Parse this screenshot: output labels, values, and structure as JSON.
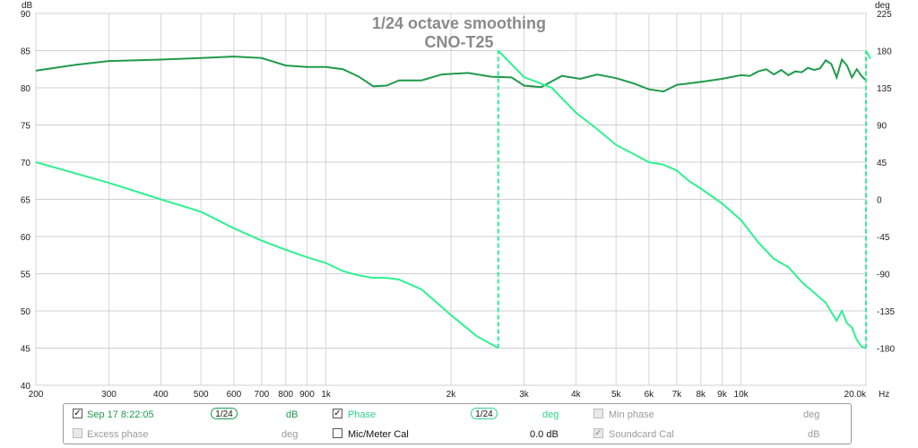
{
  "chart_data": {
    "type": "line",
    "title": "1/24 octave smoothing",
    "subtitle": "CNO-T25",
    "x_scale": "log",
    "xlim": [
      200,
      20000
    ],
    "x_ticks": [
      {
        "v": 200,
        "label": "200"
      },
      {
        "v": 300,
        "label": "300"
      },
      {
        "v": 400,
        "label": "400"
      },
      {
        "v": 500,
        "label": "500"
      },
      {
        "v": 600,
        "label": "600"
      },
      {
        "v": 700,
        "label": "700"
      },
      {
        "v": 800,
        "label": "800"
      },
      {
        "v": 900,
        "label": "900"
      },
      {
        "v": 1000,
        "label": "1k"
      },
      {
        "v": 2000,
        "label": "2k"
      },
      {
        "v": 3000,
        "label": "3k"
      },
      {
        "v": 4000,
        "label": "4k"
      },
      {
        "v": 5000,
        "label": "5k"
      },
      {
        "v": 6000,
        "label": "6k"
      },
      {
        "v": 7000,
        "label": "7k"
      },
      {
        "v": 8000,
        "label": "8k"
      },
      {
        "v": 9000,
        "label": "9k"
      },
      {
        "v": 10000,
        "label": "10k"
      },
      {
        "v": 20000,
        "label": "20.0k"
      }
    ],
    "x_unit": "Hz",
    "left_axis": {
      "unit": "dB",
      "ylim": [
        40,
        90
      ],
      "ticks": [
        40,
        45,
        50,
        55,
        60,
        65,
        70,
        75,
        80,
        85,
        90
      ]
    },
    "right_axis": {
      "unit": "deg",
      "ylim": [
        -225,
        225
      ],
      "ticks": [
        -180,
        -135,
        -90,
        -45,
        0,
        45,
        90,
        135,
        180,
        225
      ]
    },
    "grid": true,
    "series": [
      {
        "name": "Sep 17 8:22:05",
        "axis": "left",
        "color": "#1f9a4b",
        "x": [
          200,
          250,
          300,
          400,
          500,
          600,
          700,
          800,
          900,
          1000,
          1100,
          1200,
          1300,
          1400,
          1500,
          1700,
          1900,
          2200,
          2500,
          2800,
          3000,
          3300,
          3700,
          4100,
          4500,
          5000,
          5500,
          6000,
          6500,
          7000,
          8000,
          9000,
          10000,
          10500,
          11000,
          11500,
          12000,
          12500,
          13000,
          13500,
          14000,
          14500,
          15000,
          15500,
          16000,
          16500,
          17000,
          17500,
          18000,
          18500,
          19000,
          19500,
          20000
        ],
        "y": [
          82.3,
          83.1,
          83.6,
          83.8,
          84.0,
          84.2,
          84.0,
          83.0,
          82.8,
          82.8,
          82.5,
          81.5,
          80.2,
          80.3,
          81.0,
          81.0,
          81.8,
          82.0,
          81.5,
          81.4,
          80.3,
          80.1,
          81.6,
          81.2,
          81.8,
          81.3,
          80.6,
          79.8,
          79.5,
          80.4,
          80.8,
          81.2,
          81.7,
          81.6,
          82.2,
          82.5,
          81.8,
          82.4,
          81.7,
          82.2,
          82.1,
          82.7,
          82.4,
          82.6,
          83.7,
          83.2,
          81.4,
          83.8,
          83.0,
          81.4,
          82.5,
          81.6,
          81.0
        ]
      },
      {
        "name": "Phase",
        "axis": "right",
        "color": "#2ef28e",
        "x": [
          200,
          300,
          400,
          500,
          600,
          700,
          800,
          900,
          1000,
          1100,
          1200,
          1300,
          1400,
          1500,
          1700,
          2000,
          2300,
          2600,
          2601,
          3000,
          3500,
          4000,
          4500,
          5000,
          5500,
          6000,
          6500,
          7000,
          7500,
          8000,
          9000,
          10000,
          11000,
          12000,
          13000,
          14000,
          15000,
          16000,
          17000,
          17500,
          18000,
          18500,
          19000,
          19500,
          20000,
          20001,
          20500
        ],
        "y": [
          45,
          20,
          0,
          -15,
          -35,
          -50,
          -61,
          -70,
          -77,
          -87,
          -92,
          -95,
          -95,
          -97,
          -109,
          -140,
          -165,
          -180,
          180,
          148,
          135,
          105,
          85,
          66,
          55,
          45,
          42,
          35,
          22,
          13,
          -5,
          -25,
          -52,
          -72,
          -82,
          -100,
          -113,
          -125,
          -147,
          -135,
          -150,
          -155,
          -170,
          -178,
          -180,
          180,
          170
        ]
      }
    ]
  },
  "legend": {
    "row1": {
      "measure_label": "Sep 17 8:22:05",
      "measure_smoothing": "1/24",
      "measure_unit": "dB",
      "phase_label": "Phase",
      "phase_smoothing": "1/24",
      "phase_unit": "deg",
      "minphase_label": "Min phase",
      "minphase_unit": "deg"
    },
    "row2": {
      "excess_label": "Excess phase",
      "excess_unit": "deg",
      "micmeter_label": "Mic/Meter Cal",
      "micmeter_value": "0.0 dB",
      "soundcard_label": "Soundcard Cal",
      "soundcard_unit": "dB"
    }
  }
}
